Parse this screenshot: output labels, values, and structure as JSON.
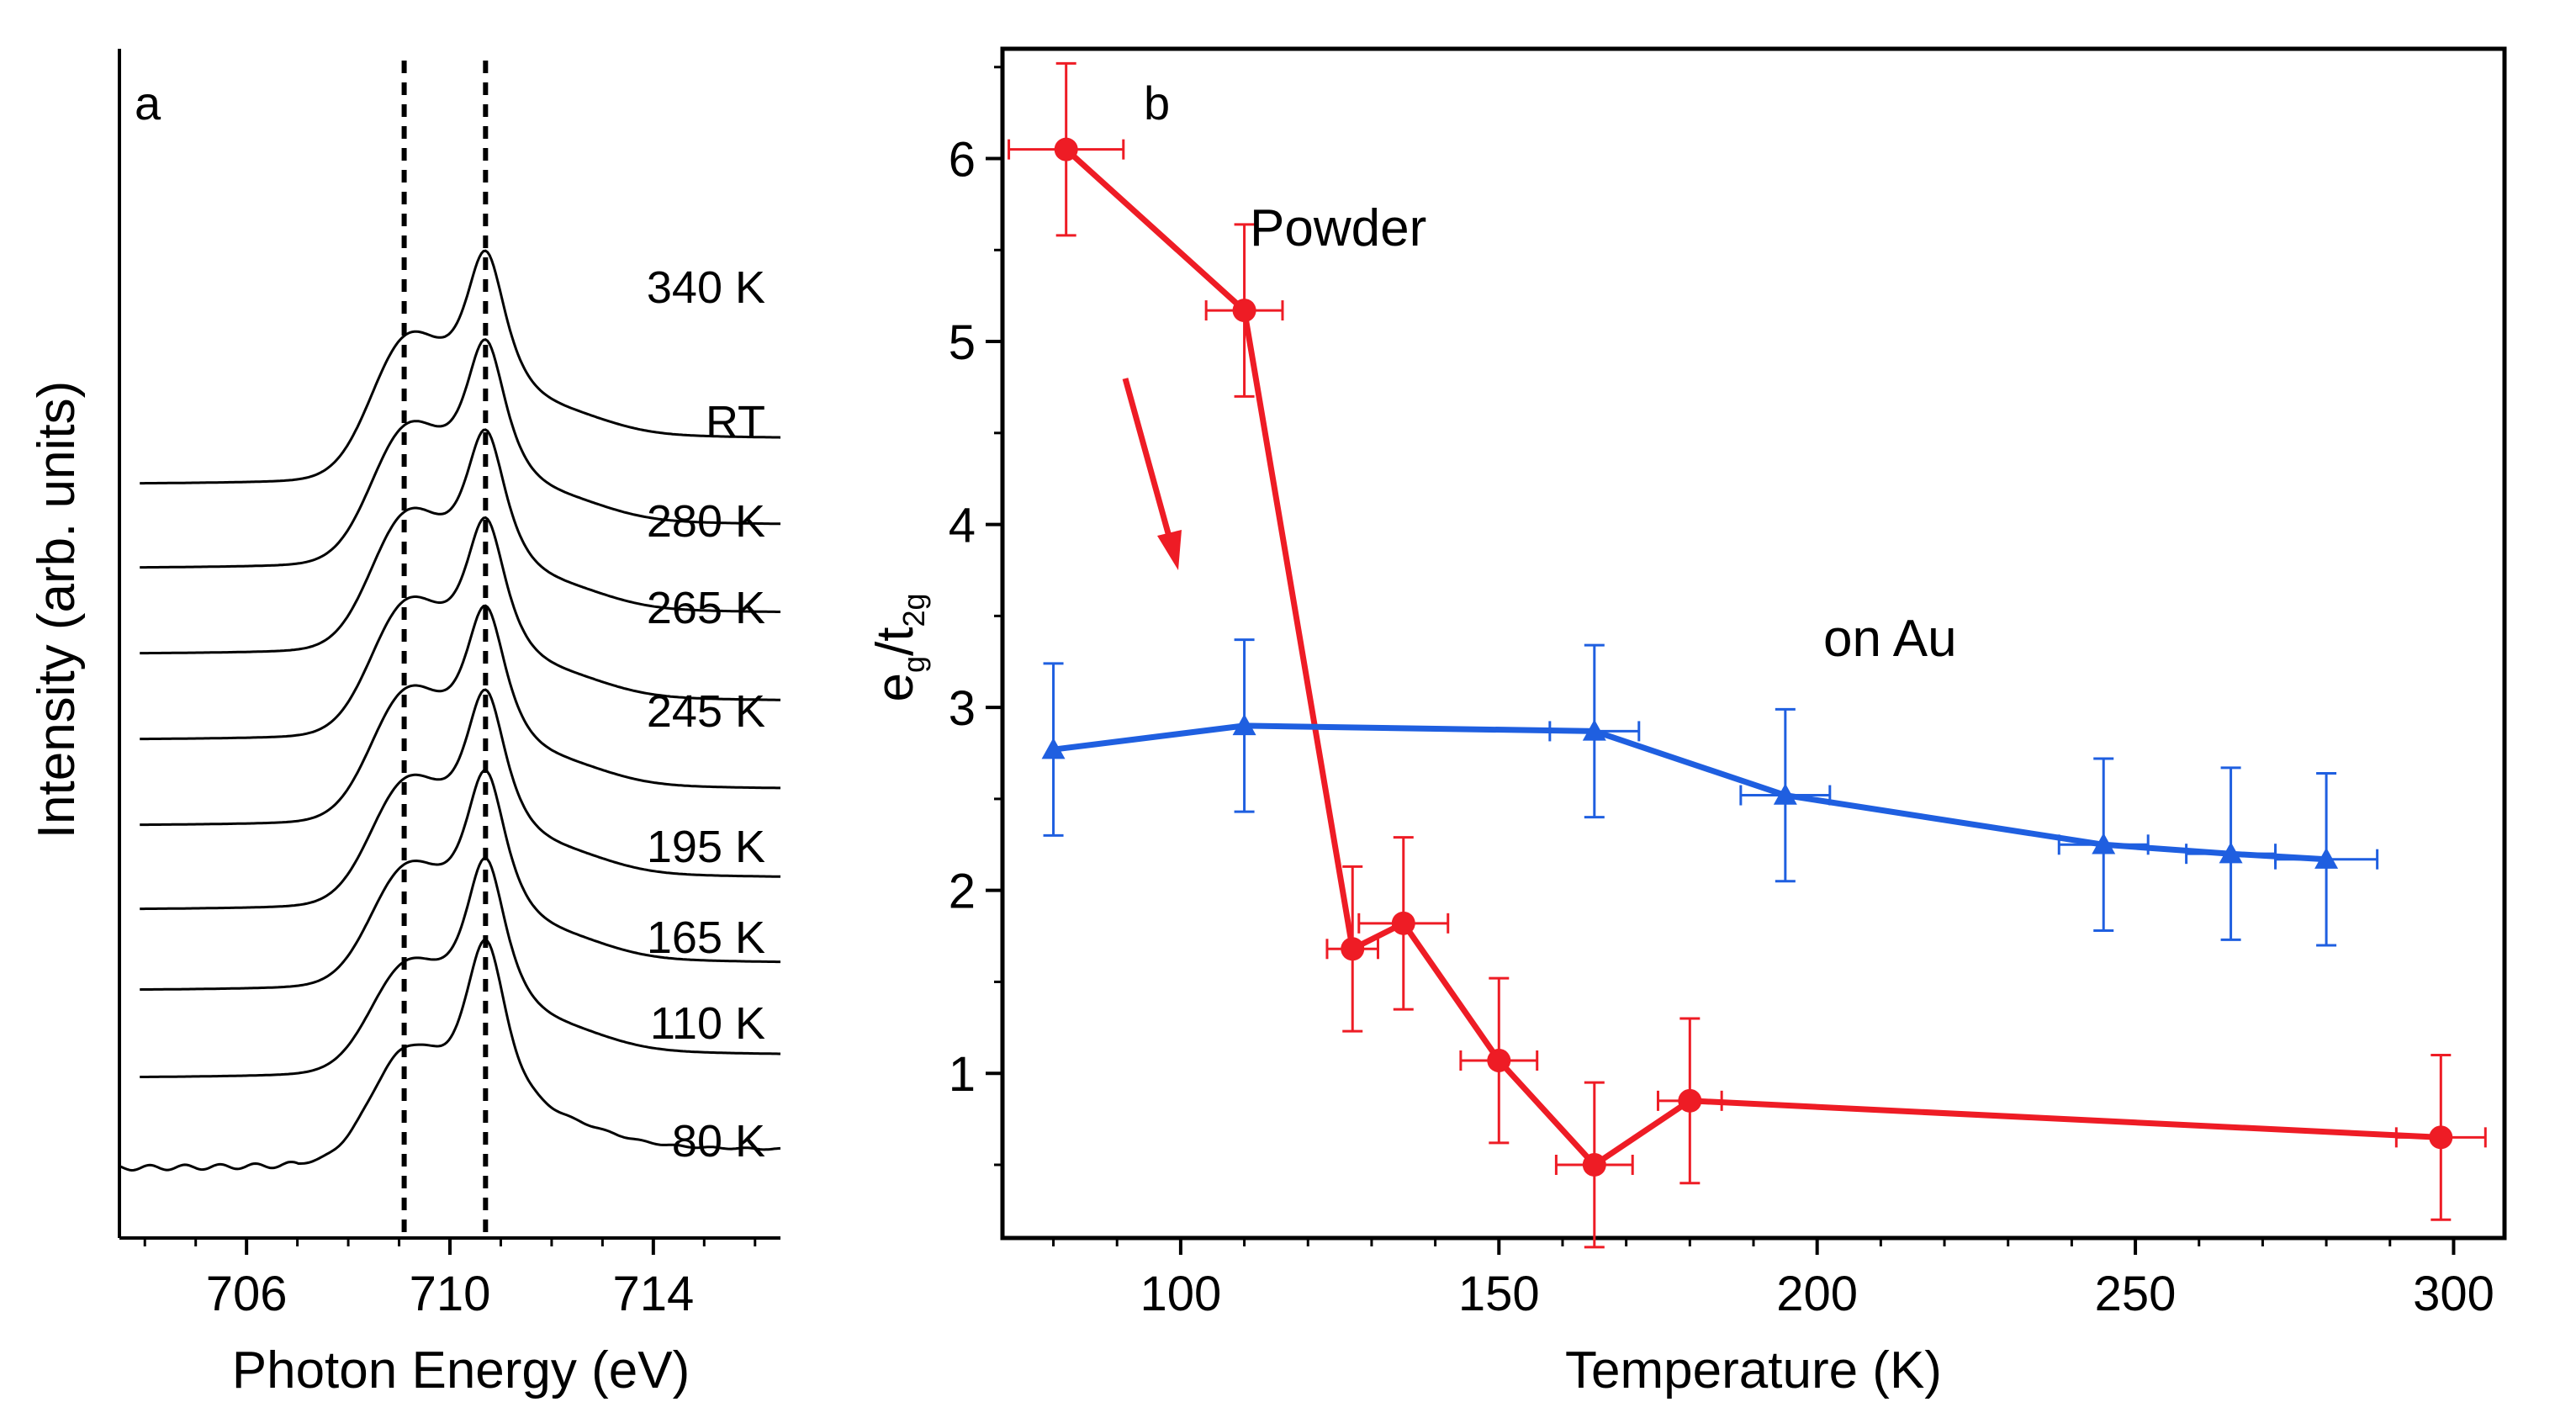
{
  "chart_data": [
    {
      "panel_label": "a",
      "type": "line",
      "title": "",
      "xlabel": "Photon Energy (eV)",
      "ylabel": "Intensity (arb. units)",
      "xlim": [
        703.5,
        716.5
      ],
      "xticks": [
        706,
        710,
        714
      ],
      "reference_lines_eV": [
        709.1,
        710.7
      ],
      "peaks_eV": [
        709.1,
        710.7
      ],
      "series": [
        {
          "name": "80 K",
          "pre_peak": 0.42,
          "main_peak": 0.9,
          "tail": 0.08
        },
        {
          "name": "110 K",
          "pre_peak": 0.4,
          "main_peak": 0.84,
          "tail": 0.1
        },
        {
          "name": "165 K",
          "pre_peak": 0.44,
          "main_peak": 0.82,
          "tail": 0.12
        },
        {
          "name": "195 K",
          "pre_peak": 0.46,
          "main_peak": 0.8,
          "tail": 0.14
        },
        {
          "name": "245 K",
          "pre_peak": 0.48,
          "main_peak": 0.78,
          "tail": 0.16
        },
        {
          "name": "265 K",
          "pre_peak": 0.49,
          "main_peak": 0.78,
          "tail": 0.17
        },
        {
          "name": "280 K",
          "pre_peak": 0.5,
          "main_peak": 0.78,
          "tail": 0.18
        },
        {
          "name": "RT",
          "pre_peak": 0.5,
          "main_peak": 0.79,
          "tail": 0.19
        },
        {
          "name": "340 K",
          "pre_peak": 0.52,
          "main_peak": 0.8,
          "tail": 0.2
        }
      ]
    },
    {
      "panel_label": "b",
      "type": "line",
      "title": "",
      "xlabel": "Temperature (K)",
      "ylabel": "e_g/t_2g",
      "ylabel_main": "e",
      "ylabel_sub1": "g",
      "ylabel_mid": "/t",
      "ylabel_sub2": "2g",
      "xlim": [
        72,
        308
      ],
      "ylim": [
        0.1,
        6.6
      ],
      "xticks": [
        100,
        150,
        200,
        250,
        300
      ],
      "yticks": [
        1,
        2,
        3,
        4,
        5,
        6
      ],
      "xtick_labels": [
        "100",
        "150",
        "200",
        "250",
        "300"
      ],
      "ytick_labels": [
        "1",
        "2",
        "3",
        "4",
        "5",
        "6"
      ],
      "series": [
        {
          "name": "Powder",
          "color": "#ee1c25",
          "marker": "circle",
          "x": [
            82,
            110,
            127,
            135,
            150,
            165,
            180,
            298
          ],
          "y": [
            6.05,
            5.17,
            1.68,
            1.82,
            1.07,
            0.5,
            0.85,
            0.65
          ],
          "yerr": [
            0.47,
            0.47,
            0.45,
            0.47,
            0.45,
            0.45,
            0.45,
            0.45
          ],
          "xerr": [
            9,
            6,
            4,
            7,
            6,
            6,
            5,
            7
          ]
        },
        {
          "name": "on Au",
          "color": "#1f5fe0",
          "marker": "triangle",
          "x": [
            80,
            110,
            165,
            195,
            245,
            265,
            280
          ],
          "y": [
            2.77,
            2.9,
            2.87,
            2.52,
            2.25,
            2.2,
            2.17
          ],
          "yerr": [
            0.47,
            0.47,
            0.47,
            0.47,
            0.47,
            0.47,
            0.47
          ],
          "xerr": [
            0,
            0,
            7,
            7,
            7,
            7,
            8
          ]
        }
      ],
      "annotations": [
        {
          "text": "Powder",
          "x": 128,
          "y": 5.52
        },
        {
          "text": "on Au",
          "x": 210,
          "y": 3.12
        }
      ]
    }
  ]
}
